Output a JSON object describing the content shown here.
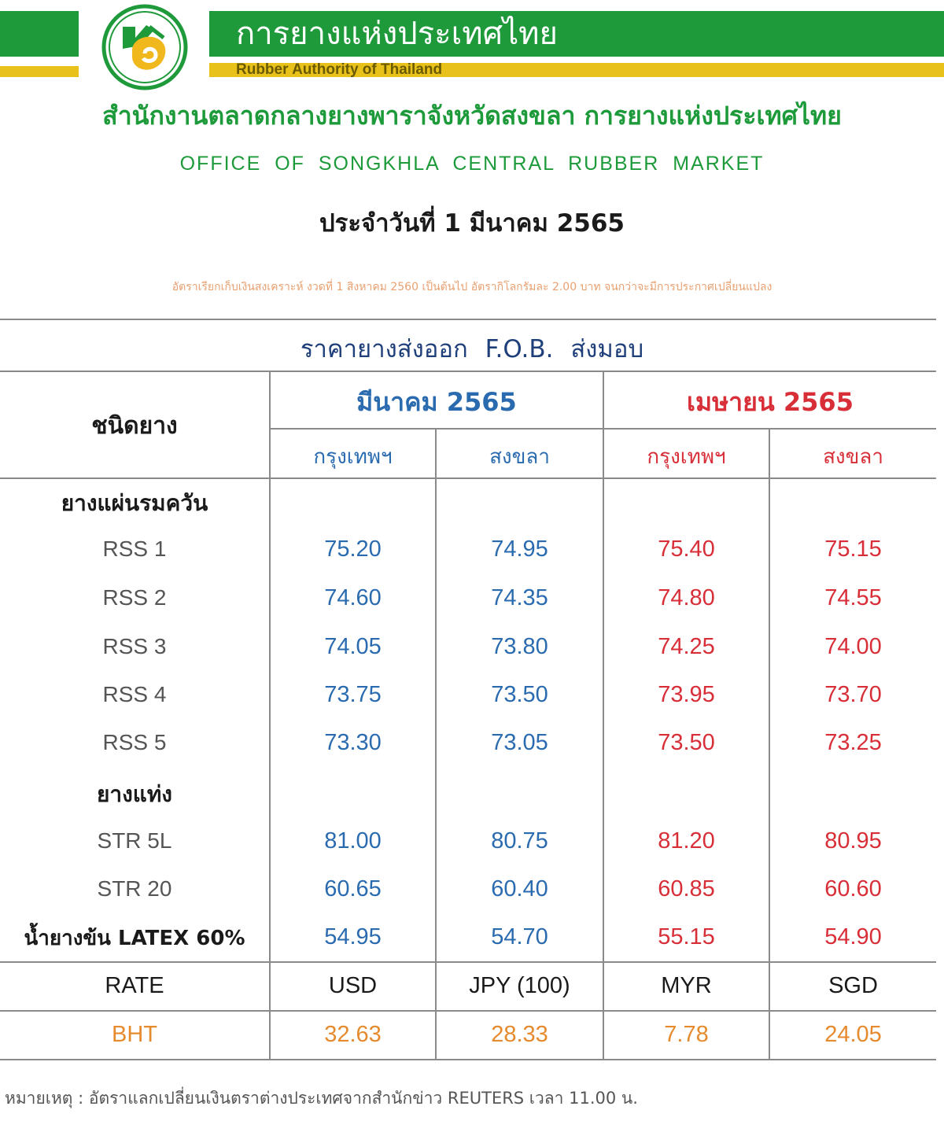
{
  "header": {
    "org_name_th": "การยางแห่งประเทศไทย",
    "org_name_en": "Rubber Authority of Thailand",
    "office_th": "สำนักงานตลาดกลางยางพาราจังหวัดสงขลา การยางแห่งประเทศไทย",
    "office_en": "OFFICE OF SONGKHLA CENTRAL RUBBER MARKET",
    "date": "ประจำวันที่ 1 มีนาคม 2565",
    "cess_note": "อัตราเรียกเก็บเงินสงเคราะห์ งวดที่ 1 สิงหาคม 2560 เป็นต้นไป อัตรากิโลกรัมละ 2.00 บาท จนกว่าจะมีการประกาศเปลี่ยนแปลง"
  },
  "colors": {
    "green": "#1f9a3a",
    "yellow": "#e8c21a",
    "blue": "#2a6bb0",
    "red": "#d82e38",
    "orange": "#e68a2e"
  },
  "table": {
    "title": "ราคายางส่งออก F.O.B. ส่งมอบ",
    "type_header": "ชนิดยาง",
    "months": [
      "มีนาคม 2565",
      "เมษายน 2565"
    ],
    "ports": [
      "กรุงเทพฯ",
      "สงขลา",
      "กรุงเทพฯ",
      "สงขลา"
    ],
    "groups": [
      "ยางแผ่นรมควัน",
      "ยางแท่ง"
    ],
    "rows": [
      {
        "label": "RSS 1",
        "values": [
          "75.20",
          "74.95",
          "75.40",
          "75.15"
        ]
      },
      {
        "label": "RSS 2",
        "values": [
          "74.60",
          "74.35",
          "74.80",
          "74.55"
        ]
      },
      {
        "label": "RSS 3",
        "values": [
          "74.05",
          "73.80",
          "74.25",
          "74.00"
        ]
      },
      {
        "label": "RSS 4",
        "values": [
          "73.75",
          "73.50",
          "73.95",
          "73.70"
        ]
      },
      {
        "label": "RSS 5",
        "values": [
          "73.30",
          "73.05",
          "73.50",
          "73.25"
        ]
      },
      {
        "label": "STR 5L",
        "values": [
          "81.00",
          "80.75",
          "81.20",
          "80.95"
        ]
      },
      {
        "label": "STR 20",
        "values": [
          "60.65",
          "60.40",
          "60.85",
          "60.60"
        ]
      },
      {
        "label": "น้ำยางข้น LATEX 60%",
        "values": [
          "54.95",
          "54.70",
          "55.15",
          "54.90"
        ]
      }
    ],
    "rate_row": {
      "label": "RATE",
      "values": [
        "USD",
        "JPY (100)",
        "MYR",
        "SGD"
      ]
    },
    "bht_row": {
      "label": "BHT",
      "values": [
        "32.63",
        "28.33",
        "7.78",
        "24.05"
      ]
    }
  },
  "footer": {
    "note": "หมายเหตุ :  อัตราแลกเปลี่ยนเงินตราต่างประเทศจากสำนักข่าว REUTERS   เวลา 11.00 น."
  }
}
